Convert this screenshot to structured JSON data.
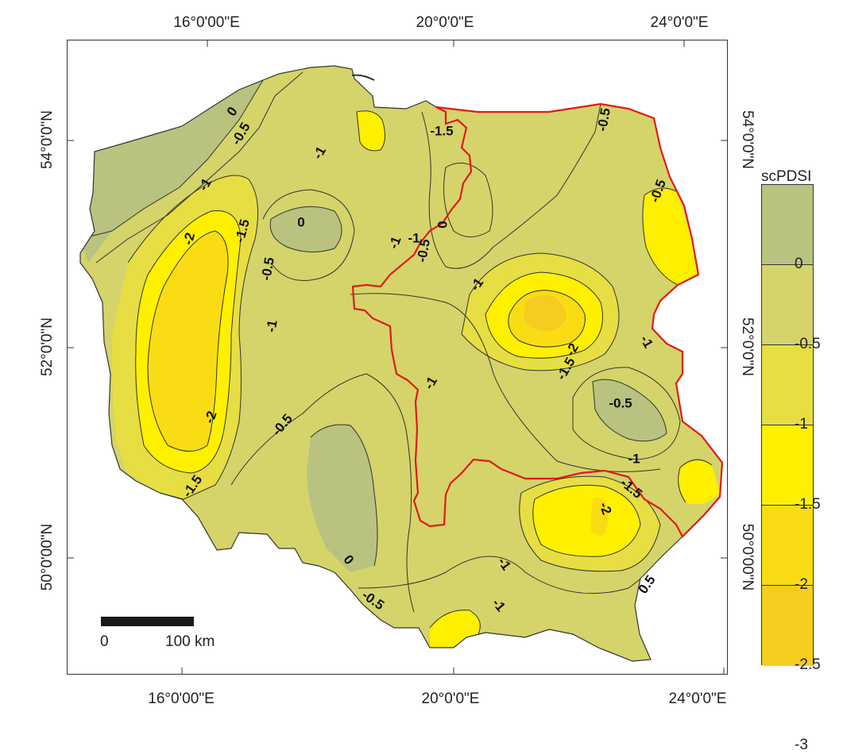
{
  "colors": {
    "background": "#ffffff",
    "frame": "#333333",
    "border_red": "#e3191c",
    "contour_line": "#333333"
  },
  "coordinates": {
    "top": [
      "16°0'00\"E",
      "20°0'0\"E",
      "24°0'0\"E"
    ],
    "bottom": [
      "16°0'00\"E",
      "20°0'0\"E",
      "24°0'0\"E"
    ],
    "left": [
      "54°0'0\"N",
      "52°0'0\"N",
      "50°0'00\"N"
    ],
    "right": [
      "54°0'0\"N",
      "52°0'0\"N",
      "50°0'00\"N"
    ]
  },
  "legend": {
    "title": "scPDSI",
    "classes": [
      {
        "color": "#b9c27e"
      },
      {
        "color": "#d4d46a"
      },
      {
        "color": "#e6de42"
      },
      {
        "color": "#fff000"
      },
      {
        "color": "#fadc14"
      },
      {
        "color": "#f5cd1e"
      }
    ],
    "labels": [
      "0",
      "-0.5",
      "-1",
      "-1.5",
      "-2",
      "-2.5",
      "-3"
    ]
  },
  "scale": {
    "label_start": "0",
    "label_end": "100 km"
  },
  "contour_labels": [
    "0",
    "-0.5",
    "-1",
    "-1",
    "-1.5",
    "-2",
    "-2",
    "-1.5",
    "0",
    "-0.5",
    "-1",
    "-0.5",
    "-1",
    "-0.5",
    "0",
    "-0.5",
    "-1",
    "-1",
    "-1.5",
    "-2",
    "-1",
    "-0.5",
    "-1",
    "-1.5",
    "-2",
    "-1",
    "0.5",
    "0",
    "-0.5",
    "-0.5",
    "-1",
    "-1.5",
    "-1"
  ]
}
